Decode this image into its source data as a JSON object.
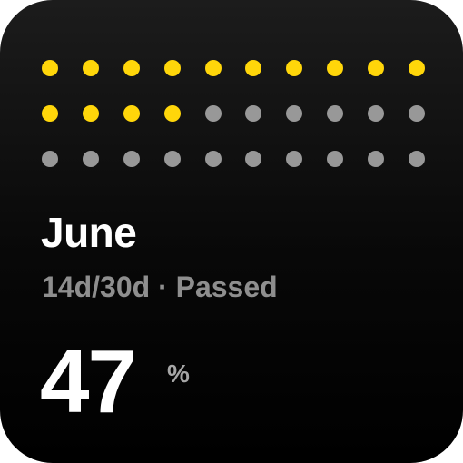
{
  "widget": {
    "month": "June",
    "day_progress": "14d/30d",
    "separator": "·",
    "status": "Passed",
    "percent_value": "47",
    "percent_unit": "%"
  },
  "day_grid": {
    "total_days": 30,
    "passed_days": 14,
    "columns": 10
  },
  "colors": {
    "passed_dot": "#ffd60a",
    "remaining_dot": "#989898",
    "background": "#000000",
    "title": "#ffffff",
    "subtitle": "#8e8e8e"
  }
}
